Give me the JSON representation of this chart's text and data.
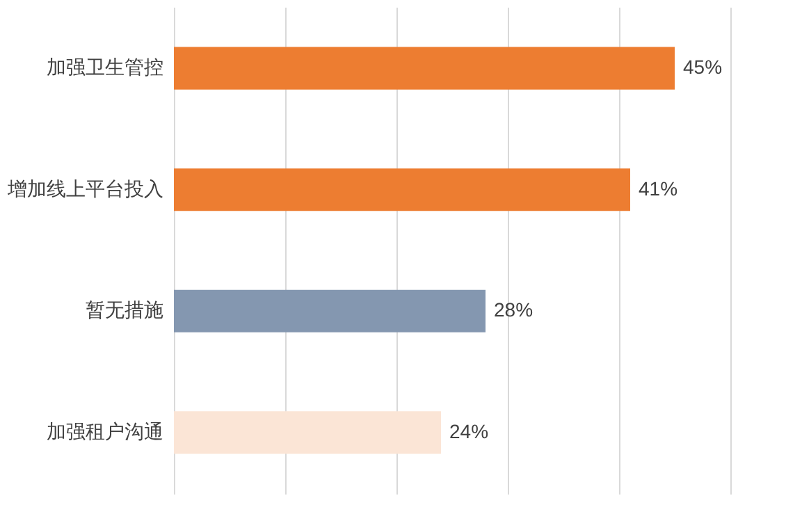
{
  "chart_data": {
    "type": "bar",
    "orientation": "horizontal",
    "categories": [
      "加强卫生管控",
      "增加线上平台投入",
      "暂无措施",
      "加强租户沟通"
    ],
    "values": [
      45,
      41,
      28,
      24
    ],
    "colors": [
      "#ed7d31",
      "#ed7d31",
      "#8497b0",
      "#fbe5d6"
    ],
    "value_labels": [
      "45%",
      "41%",
      "28%",
      "24%"
    ],
    "xlim": [
      0,
      50
    ],
    "xticks": [
      {
        "value": 0,
        "label": null
      },
      {
        "value": 10,
        "label": null
      },
      {
        "value": 20,
        "label": null
      },
      {
        "value": 30,
        "label": null
      },
      {
        "value": 40,
        "label": null
      },
      {
        "value": 50,
        "label": null
      }
    ],
    "grid": "x",
    "tick_labels": "y"
  }
}
